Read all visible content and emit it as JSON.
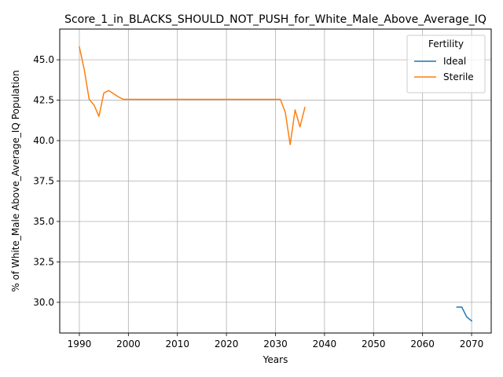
{
  "chart_data": {
    "type": "line",
    "title": "Score_1_in_BLACKS_SHOULD_NOT_PUSH_for_White_Male_Above_Average_IQ",
    "xlabel": "Years",
    "ylabel": "% of White_Male Above_Average_IQ Population",
    "xlim": [
      1986,
      2074
    ],
    "ylim": [
      28.1,
      46.9
    ],
    "x_ticks": [
      1990,
      2000,
      2010,
      2020,
      2030,
      2040,
      2050,
      2060,
      2070
    ],
    "y_ticks": [
      30.0,
      32.5,
      35.0,
      37.5,
      40.0,
      42.5,
      45.0
    ],
    "y_tick_labels": [
      "30.0",
      "32.5",
      "35.0",
      "37.5",
      "40.0",
      "42.5",
      "45.0"
    ],
    "grid": true,
    "legend": {
      "title": "Fertility",
      "placement": "top-right"
    },
    "series": [
      {
        "name": "Ideal",
        "color": "#1f77b4",
        "x": [
          2067,
          2068,
          2069,
          2070
        ],
        "y": [
          29.7,
          29.7,
          29.1,
          28.85
        ]
      },
      {
        "name": "Sterile",
        "color": "#ff7f0e",
        "x": [
          1990,
          1991,
          1992,
          1993,
          1994,
          1995,
          1996,
          1997,
          1998,
          1999,
          2000,
          2005,
          2010,
          2015,
          2020,
          2025,
          2030,
          2031,
          2032,
          2033,
          2034,
          2035,
          2036
        ],
        "y": [
          45.8,
          44.4,
          42.55,
          42.2,
          41.5,
          42.95,
          43.1,
          42.9,
          42.7,
          42.55,
          42.55,
          42.55,
          42.55,
          42.55,
          42.55,
          42.55,
          42.55,
          42.55,
          41.75,
          39.75,
          41.9,
          40.85,
          42.05
        ]
      }
    ]
  }
}
